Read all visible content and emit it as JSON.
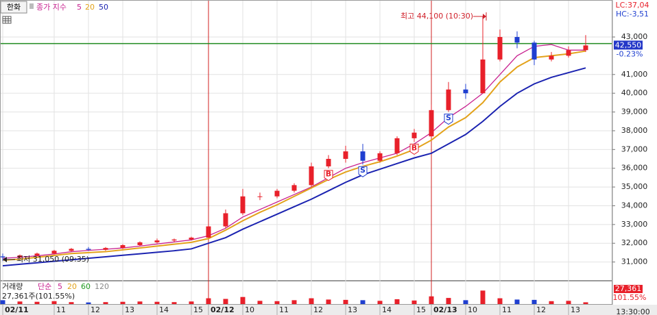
{
  "header": {
    "symbol": "한화"
  },
  "chart_data": {
    "type": "candlestick",
    "ma_label": "종가 지수",
    "categories": [
      "02/11",
      null,
      null,
      "11",
      null,
      "12",
      null,
      "13",
      null,
      "14",
      null,
      "15",
      "02/12",
      null,
      "10",
      null,
      "11",
      null,
      "12",
      null,
      "13",
      null,
      "14",
      null,
      "15",
      "02/13",
      null,
      "10",
      null,
      "11",
      null,
      "12",
      null,
      "13",
      null
    ],
    "open": [
      31300,
      31250,
      31350,
      31450,
      31600,
      31700,
      31650,
      31750,
      31900,
      32050,
      32150,
      32200,
      32300,
      32900,
      33600,
      34500,
      34500,
      34800,
      35100,
      36100,
      36500,
      36900,
      36400,
      36800,
      37600,
      37700,
      39100,
      40200,
      40000,
      41800,
      43000,
      42700,
      41800,
      42000,
      42300
    ],
    "high": [
      31450,
      31400,
      31500,
      31650,
      31750,
      31800,
      31800,
      31950,
      32100,
      32250,
      32250,
      32350,
      33000,
      33800,
      34900,
      34700,
      34900,
      35200,
      36300,
      36700,
      37200,
      37300,
      36900,
      37700,
      38100,
      39400,
      40600,
      40500,
      44100,
      43400,
      43300,
      42800,
      42200,
      42500,
      43100
    ],
    "low": [
      31050,
      31200,
      31300,
      31400,
      31550,
      31600,
      31600,
      31700,
      31850,
      32000,
      32050,
      32150,
      32300,
      32800,
      33500,
      34300,
      34400,
      34700,
      35000,
      36000,
      36300,
      36200,
      36300,
      36700,
      37400,
      37600,
      39000,
      39700,
      40000,
      41700,
      42400,
      41500,
      41700,
      41900,
      42200
    ],
    "close": [
      31250,
      31350,
      31450,
      31600,
      31700,
      31650,
      31750,
      31900,
      32050,
      32150,
      32200,
      32300,
      32900,
      33600,
      34500,
      34500,
      34800,
      35100,
      36100,
      36500,
      36900,
      36400,
      36800,
      37600,
      37900,
      39100,
      40200,
      40000,
      41800,
      43000,
      42700,
      41800,
      42000,
      42300,
      42550
    ],
    "signals": [
      null,
      null,
      null,
      null,
      null,
      null,
      null,
      null,
      null,
      null,
      null,
      null,
      null,
      null,
      null,
      null,
      null,
      null,
      null,
      "B",
      null,
      "S",
      null,
      null,
      "B",
      null,
      "S",
      null,
      null,
      null,
      null,
      null,
      null,
      null,
      null
    ],
    "series": [
      {
        "name": "5",
        "color": "#c8208f",
        "values": [
          31200,
          31250,
          31330,
          31430,
          31550,
          31620,
          31680,
          31750,
          31850,
          31960,
          32070,
          32180,
          32400,
          32800,
          33400,
          33800,
          34200,
          34600,
          35000,
          35500,
          36000,
          36300,
          36550,
          36800,
          37300,
          37900,
          38700,
          39300,
          40000,
          41000,
          42000,
          42500,
          42600,
          42300,
          42300
        ]
      },
      {
        "name": "20",
        "color": "#e3a21a",
        "values": [
          31100,
          31150,
          31250,
          31350,
          31450,
          31500,
          31550,
          31650,
          31750,
          31850,
          31950,
          32050,
          32250,
          32700,
          33200,
          33650,
          34050,
          34500,
          34950,
          35400,
          35800,
          36100,
          36350,
          36650,
          37000,
          37500,
          38200,
          38700,
          39500,
          40600,
          41400,
          41900,
          42000,
          42100,
          42250
        ]
      },
      {
        "name": "50",
        "color": "#1a22b0",
        "values": [
          30800,
          30880,
          30960,
          31040,
          31120,
          31200,
          31280,
          31360,
          31440,
          31520,
          31600,
          31700,
          32000,
          32300,
          32750,
          33150,
          33550,
          33950,
          34350,
          34800,
          35250,
          35650,
          35950,
          36250,
          36550,
          36800,
          37300,
          37800,
          38500,
          39300,
          40000,
          40500,
          40850,
          41100,
          41350
        ]
      }
    ],
    "up_color": "#e8202a",
    "down_color": "#1f3fd0",
    "grid": true,
    "ylim": [
      30000,
      44900
    ],
    "yticks": [
      {
        "value": 31000,
        "label": "31,000"
      },
      {
        "value": 32000,
        "label": "32,000"
      },
      {
        "value": 33000,
        "label": "33,000"
      },
      {
        "value": 34000,
        "label": "34,000"
      },
      {
        "value": 35000,
        "label": "35,000"
      },
      {
        "value": 36000,
        "label": "36,000"
      },
      {
        "value": 37000,
        "label": "37,000"
      },
      {
        "value": 38000,
        "label": "38,000"
      },
      {
        "value": 39000,
        "label": "39,000"
      },
      {
        "value": 40000,
        "label": "40,000"
      },
      {
        "value": 41000,
        "label": "41,000"
      },
      {
        "value": 43000,
        "label": "43,000"
      }
    ],
    "reference_line": {
      "value": 42650,
      "color": "#1f8a1f"
    },
    "last_price": {
      "value": 42550,
      "label": "42,550"
    },
    "change_label": "-0.23%",
    "lc_label": "LC:37,04",
    "hc_label": "HC:-3,51",
    "high_annotation": "최고 44,100 (10:30)",
    "low_annotation": "최저 31,050 (09:35)",
    "time_label": "13:30:00",
    "volume": {
      "type": "bar",
      "title": "거래량",
      "ma_label": "단순",
      "ma_names": [
        {
          "name": "5",
          "color": "#c8208f"
        },
        {
          "name": "20",
          "color": "#e3a21a"
        },
        {
          "name": "60",
          "color": "#1f9a1f"
        },
        {
          "name": "120",
          "color": "#888888"
        }
      ],
      "values": [
        60000,
        40000,
        35000,
        45000,
        30000,
        25000,
        30000,
        35000,
        40000,
        35000,
        30000,
        40000,
        90000,
        80000,
        110000,
        50000,
        45000,
        60000,
        90000,
        70000,
        65000,
        60000,
        50000,
        75000,
        55000,
        120000,
        95000,
        60000,
        210000,
        90000,
        70000,
        65000,
        45000,
        50000,
        27361
      ],
      "ylim": [
        0,
        320000
      ],
      "summary": "27,361주(101.55%)",
      "last": {
        "value": 27361,
        "label": "27,361"
      },
      "ratio_label": "101.55%"
    }
  }
}
